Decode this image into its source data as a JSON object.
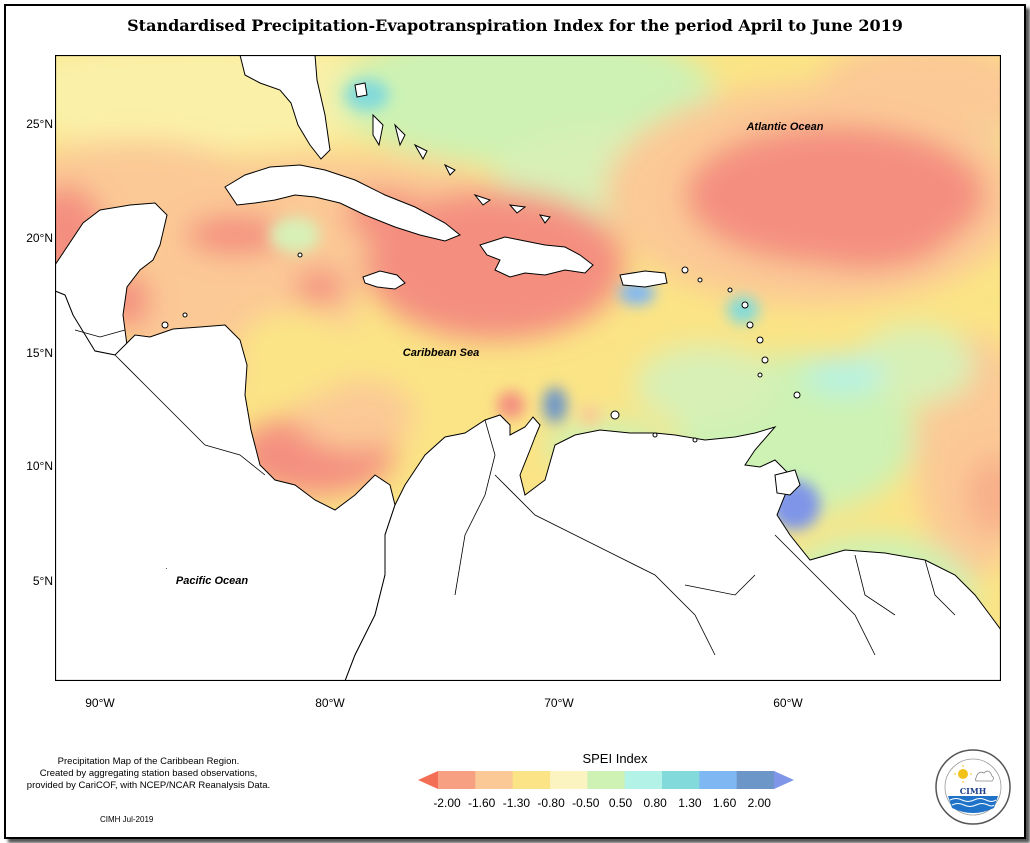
{
  "title": "Standardised Precipitation-Evapotranspiration Index for the period April to June 2019",
  "map": {
    "labels": {
      "atlantic": "Atlantic Ocean",
      "caribbean": "Caribbean Sea",
      "pacific": "Pacific Ocean"
    },
    "lat_ticks": [
      "25°N",
      "20°N",
      "15°N",
      "10°N",
      "5°N"
    ],
    "lon_ticks": [
      "90°W",
      "80°W",
      "70°W",
      "60°W"
    ]
  },
  "notes": {
    "line1": "Precipitation Map of the Caribbean Region.",
    "line2": "Created by aggregating station based observations,",
    "line3": "provided by CariCOF, with NCEP/NCAR Reanalysis Data.",
    "credit": "CIMH Jul-2019"
  },
  "legend": {
    "title": "SPEI Index",
    "labels": [
      "-2.00",
      "-1.60",
      "-1.30",
      "-0.80",
      "-0.50",
      "0.50",
      "0.80",
      "1.30",
      "1.60",
      "2.00"
    ],
    "colors": [
      "#f46d55",
      "#f8a182",
      "#fbc995",
      "#fbe486",
      "#fbf4c0",
      "#cdf2b4",
      "#b3f3e7",
      "#83dada",
      "#7fb7f2",
      "#6d96c8",
      "#7f95e8"
    ]
  },
  "logo": {
    "name": "CIMH"
  }
}
